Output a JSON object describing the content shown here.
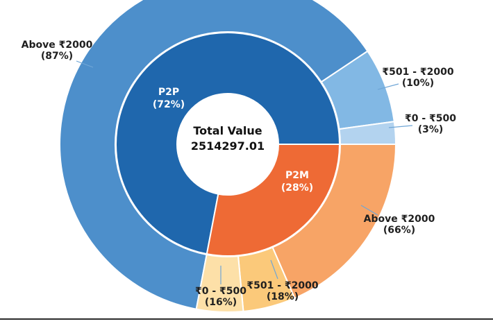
{
  "chart_data": {
    "type": "sunburst",
    "title": "",
    "center": {
      "title": "Total Value",
      "value": "2514297.01"
    },
    "inner_ring": [
      {
        "name": "P2P",
        "pct_label": "(72%)",
        "value": 72,
        "color": "#1f67ad"
      },
      {
        "name": "P2M",
        "pct_label": "(28%)",
        "value": 28,
        "color": "#ee6a35"
      }
    ],
    "outer_ring": [
      {
        "parent": "P2P",
        "name": "Above ₹2000",
        "pct_label": "(87%)",
        "value": 87,
        "color": "#4d8fcb"
      },
      {
        "parent": "P2P",
        "name": "₹501 - ₹2000",
        "pct_label": "(10%)",
        "value": 10,
        "color": "#82b8e4"
      },
      {
        "parent": "P2P",
        "name": "₹0 - ₹500",
        "pct_label": "(3%)",
        "value": 3,
        "color": "#b3d3ef"
      },
      {
        "parent": "P2M",
        "name": "Above ₹2000",
        "pct_label": "(66%)",
        "value": 66,
        "color": "#f7a466"
      },
      {
        "parent": "P2M",
        "name": "₹501 - ₹2000",
        "pct_label": "(18%)",
        "value": 18,
        "color": "#fbc97a"
      },
      {
        "parent": "P2M",
        "name": "₹0 - ₹500",
        "pct_label": "(16%)",
        "value": 16,
        "color": "#fde0a8"
      }
    ],
    "leader_color": "#6fa6d6"
  }
}
